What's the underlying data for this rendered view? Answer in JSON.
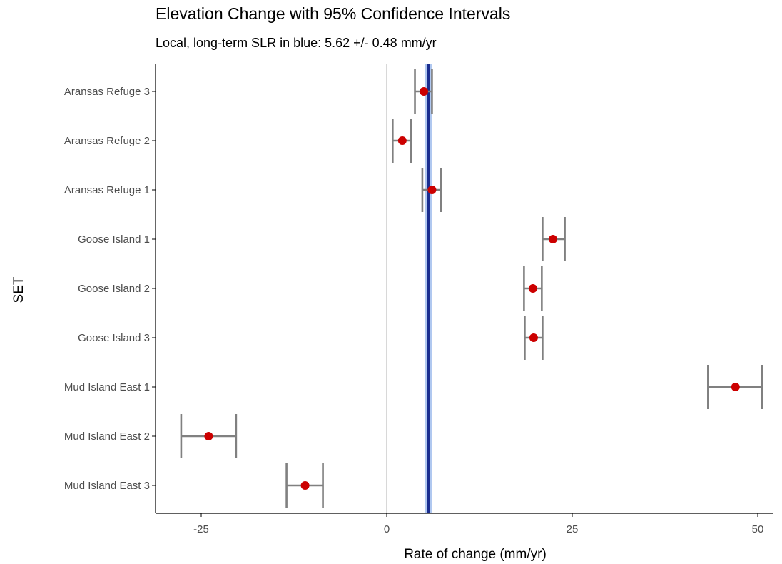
{
  "chart_data": {
    "type": "scatter",
    "title": "Elevation Change with 95% Confidence Intervals",
    "subtitle": "Local, long-term SLR in blue: 5.62 +/- 0.48 mm/yr",
    "xlabel": "Rate of change (mm/yr)",
    "ylabel": "SET",
    "xlim": [
      -31,
      52
    ],
    "xticks": [
      -25,
      0,
      25,
      50
    ],
    "grid": false,
    "reference_lines": {
      "zero": 0,
      "slr_rate": 5.62,
      "slr_ci": 0.48
    },
    "categories": [
      "Aransas Refuge 3",
      "Aransas Refuge 2",
      "Aransas Refuge 1",
      "Goose Island 1",
      "Goose Island 2",
      "Goose Island 3",
      "Mud Island East 1",
      "Mud Island East 2",
      "Mud Island East 3"
    ],
    "estimates": [
      5.0,
      2.1,
      6.1,
      22.4,
      19.7,
      19.8,
      47.0,
      -24.0,
      -11.0
    ],
    "ci_low": [
      3.8,
      0.8,
      4.8,
      21.0,
      18.5,
      18.6,
      43.3,
      -27.7,
      -13.5
    ],
    "ci_high": [
      6.1,
      3.3,
      7.3,
      24.0,
      20.9,
      21.0,
      50.6,
      -20.3,
      -8.6
    ],
    "colors": {
      "point": "#cc0000",
      "errorbar": "#808080",
      "slr_line": "#1a2d8f",
      "slr_band": "#b0c8f0",
      "zero_line": "#bfbfbf",
      "axis": "#000000"
    }
  }
}
